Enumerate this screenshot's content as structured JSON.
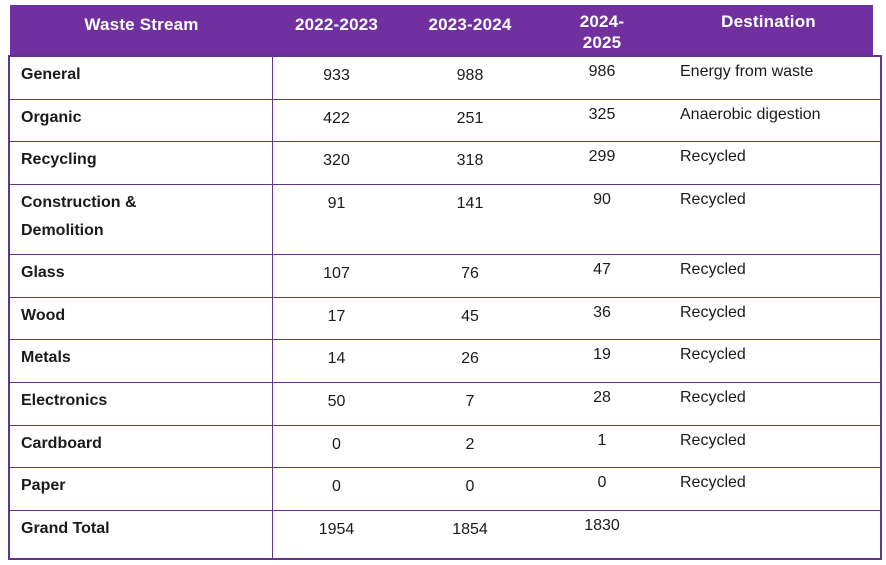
{
  "colors": {
    "header_bg": "#7030A0",
    "header_text": "#FFFFFF",
    "border": "#62338F",
    "body_text": "#1A1A1A"
  },
  "table": {
    "columns": [
      "Waste Stream",
      "2022-2023",
      "2023-2024",
      "2024-2025",
      "Destination"
    ],
    "rows": [
      [
        "General",
        "933",
        "988",
        "986",
        "Energy from waste"
      ],
      [
        "Organic",
        "422",
        "251",
        "325",
        "Anaerobic digestion"
      ],
      [
        "Recycling",
        "320",
        "318",
        "299",
        "Recycled"
      ],
      [
        "Construction & Demolition",
        "91",
        "141",
        "90",
        "Recycled"
      ],
      [
        "Glass",
        "107",
        "76",
        "47",
        "Recycled"
      ],
      [
        "Wood",
        "17",
        "45",
        "36",
        "Recycled"
      ],
      [
        "Metals",
        "14",
        "26",
        "19",
        "Recycled"
      ],
      [
        "Electronics",
        "50",
        "7",
        "28",
        "Recycled"
      ],
      [
        "Cardboard",
        "0",
        "2",
        "1",
        "Recycled"
      ],
      [
        "Paper",
        "0",
        "0",
        "0",
        "Recycled"
      ],
      [
        "Grand Total",
        "1954",
        "1854",
        "1830",
        ""
      ]
    ]
  },
  "chart_data": {
    "type": "table",
    "columns": [
      "Waste Stream",
      "2022-2023",
      "2023-2024",
      "2024-2025",
      "Destination"
    ],
    "rows": [
      {
        "waste_stream": "General",
        "2022_2023": 933,
        "2023_2024": 988,
        "2024_2025": 986,
        "destination": "Energy from waste"
      },
      {
        "waste_stream": "Organic",
        "2022_2023": 422,
        "2023_2024": 251,
        "2024_2025": 325,
        "destination": "Anaerobic digestion"
      },
      {
        "waste_stream": "Recycling",
        "2022_2023": 320,
        "2023_2024": 318,
        "2024_2025": 299,
        "destination": "Recycled"
      },
      {
        "waste_stream": "Construction & Demolition",
        "2022_2023": 91,
        "2023_2024": 141,
        "2024_2025": 90,
        "destination": "Recycled"
      },
      {
        "waste_stream": "Glass",
        "2022_2023": 107,
        "2023_2024": 76,
        "2024_2025": 47,
        "destination": "Recycled"
      },
      {
        "waste_stream": "Wood",
        "2022_2023": 17,
        "2023_2024": 45,
        "2024_2025": 36,
        "destination": "Recycled"
      },
      {
        "waste_stream": "Metals",
        "2022_2023": 14,
        "2023_2024": 26,
        "2024_2025": 19,
        "destination": "Recycled"
      },
      {
        "waste_stream": "Electronics",
        "2022_2023": 50,
        "2023_2024": 7,
        "2024_2025": 28,
        "destination": "Recycled"
      },
      {
        "waste_stream": "Cardboard",
        "2022_2023": 0,
        "2023_2024": 2,
        "2024_2025": 1,
        "destination": "Recycled"
      },
      {
        "waste_stream": "Paper",
        "2022_2023": 0,
        "2023_2024": 0,
        "2024_2025": 0,
        "destination": "Recycled"
      },
      {
        "waste_stream": "Grand Total",
        "2022_2023": 1954,
        "2023_2024": 1854,
        "2024_2025": 1830,
        "destination": ""
      }
    ]
  }
}
